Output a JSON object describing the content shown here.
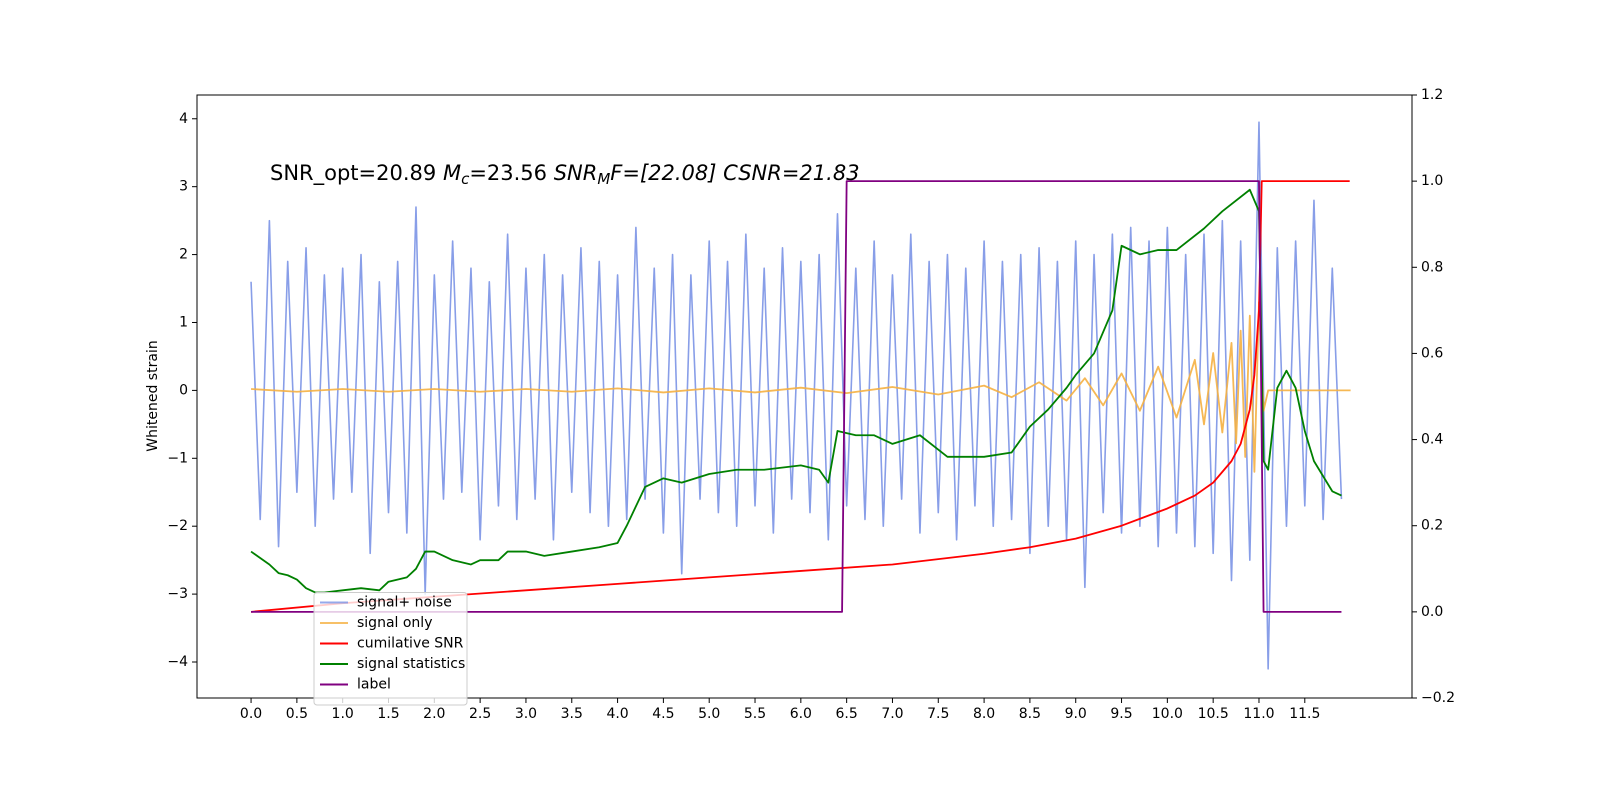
{
  "chart_data": {
    "type": "line",
    "annotation": [
      "SNR_opt=20.89 ",
      "M",
      "c",
      "=23.56  ",
      "SNR",
      "M",
      "F=[22.08] CSNR=21.83"
    ],
    "ylabel": "Whitened strain",
    "legend": "lower left",
    "xlim": [
      -0.59,
      12.67
    ],
    "ylim": [
      -4.53,
      4.35
    ],
    "y2lim": [
      -0.2,
      1.2
    ],
    "xticks": [
      {
        "value": 0,
        "label": "0.0"
      },
      0.5,
      {
        "value": 1,
        "label": "1.0"
      },
      1.5,
      {
        "value": 2,
        "label": "2.0"
      },
      2.5,
      {
        "value": 3,
        "label": "3.0"
      },
      3.5,
      {
        "value": 4,
        "label": "4.0"
      },
      4.5,
      {
        "value": 5,
        "label": "5.0"
      },
      5.5,
      {
        "value": 6,
        "label": "6.0"
      },
      6.5,
      {
        "value": 7,
        "label": "7.0"
      },
      7.5,
      {
        "value": 8,
        "label": "8.0"
      },
      8.5,
      {
        "value": 9,
        "label": "9.0"
      },
      9.5,
      {
        "value": 10,
        "label": "10.0"
      },
      10.5,
      {
        "value": 11,
        "label": "11.0"
      },
      11.5
    ],
    "yticks": [
      {
        "value": -4,
        "label": "−4"
      },
      {
        "value": -3,
        "label": "−3"
      },
      {
        "value": -2,
        "label": "−2"
      },
      {
        "value": -1,
        "label": "−1"
      },
      0,
      1,
      2,
      3,
      4
    ],
    "y2ticks": [
      {
        "value": -0.2,
        "label": "−0.2"
      },
      {
        "value": 0,
        "label": "0.0"
      },
      0.2,
      0.4,
      0.6,
      0.8,
      {
        "value": 1,
        "label": "1.0"
      },
      1.2
    ],
    "series": [
      {
        "name": "signal+ noise",
        "color": "#7b93e6",
        "x": [
          0,
          0.1,
          0.2,
          0.3,
          0.4,
          0.5,
          0.6,
          0.7,
          0.8,
          0.9,
          1,
          1.1,
          1.2,
          1.3,
          1.4,
          1.5,
          1.6,
          1.7,
          1.8,
          1.9,
          2,
          2.1,
          2.2,
          2.3,
          2.4,
          2.5,
          2.6,
          2.7,
          2.8,
          2.9,
          3,
          3.1,
          3.2,
          3.3,
          3.4,
          3.5,
          3.6,
          3.7,
          3.8,
          3.9,
          4,
          4.1,
          4.2,
          4.3,
          4.4,
          4.5,
          4.6,
          4.7,
          4.8,
          4.9,
          5,
          5.1,
          5.2,
          5.3,
          5.4,
          5.5,
          5.6,
          5.7,
          5.8,
          5.9,
          6,
          6.1,
          6.2,
          6.3,
          6.4,
          6.5,
          6.6,
          6.7,
          6.8,
          6.9,
          7,
          7.1,
          7.2,
          7.3,
          7.4,
          7.5,
          7.6,
          7.7,
          7.8,
          7.9,
          8,
          8.1,
          8.2,
          8.3,
          8.4,
          8.5,
          8.6,
          8.7,
          8.8,
          8.9,
          9,
          9.1,
          9.2,
          9.3,
          9.4,
          9.5,
          9.6,
          9.7,
          9.8,
          9.9,
          10,
          10.1,
          10.2,
          10.3,
          10.4,
          10.5,
          10.6,
          10.7,
          10.8,
          10.9,
          11,
          11.1,
          11.2,
          11.3,
          11.4,
          11.5,
          11.6,
          11.7,
          11.8,
          11.9
        ],
        "values": [
          1.6,
          -1.9,
          2.5,
          -2.3,
          1.9,
          -1.5,
          2.1,
          -2.0,
          1.7,
          -1.6,
          1.8,
          -1.5,
          2.0,
          -2.4,
          1.6,
          -1.8,
          1.9,
          -2.1,
          2.7,
          -3.0,
          1.7,
          -1.6,
          2.2,
          -1.5,
          1.8,
          -2.2,
          1.6,
          -1.7,
          2.3,
          -1.9,
          1.8,
          -1.6,
          2.0,
          -2.2,
          1.7,
          -1.5,
          2.1,
          -1.8,
          1.9,
          -2.0,
          1.7,
          -1.9,
          2.4,
          -1.6,
          1.8,
          -2.1,
          2.0,
          -2.7,
          1.7,
          -1.6,
          2.2,
          -1.8,
          1.9,
          -2.0,
          2.3,
          -1.7,
          1.8,
          -2.1,
          2.1,
          -1.6,
          1.9,
          -1.8,
          2.0,
          -2.2,
          2.6,
          -1.7,
          1.8,
          -1.9,
          2.2,
          -2.0,
          1.7,
          -1.6,
          2.3,
          -2.1,
          1.9,
          -1.8,
          2.0,
          -2.2,
          1.8,
          -1.7,
          2.2,
          -2.0,
          1.9,
          -1.9,
          2.0,
          -2.4,
          2.1,
          -2.0,
          1.9,
          -2.2,
          2.2,
          -2.9,
          2.0,
          -1.8,
          2.3,
          -2.1,
          2.4,
          -2.0,
          2.2,
          -2.3,
          2.4,
          -2.1,
          2.0,
          -2.3,
          2.3,
          -2.4,
          2.5,
          -2.8,
          2.2,
          -2.5,
          3.95,
          -4.1,
          2.1,
          -2.0,
          2.2,
          -1.7,
          2.8,
          -1.9,
          1.8,
          -1.6
        ]
      },
      {
        "name": "signal only",
        "color": "#f5b041",
        "x": [
          0,
          0.5,
          1,
          1.5,
          2,
          2.5,
          3,
          3.5,
          4,
          4.5,
          5,
          5.5,
          6,
          6.5,
          7,
          7.5,
          8,
          8.3,
          8.6,
          8.9,
          9.1,
          9.3,
          9.5,
          9.7,
          9.9,
          10.1,
          10.3,
          10.4,
          10.5,
          10.6,
          10.7,
          10.75,
          10.8,
          10.85,
          10.9,
          10.95,
          11,
          11.05,
          11.1,
          11.5,
          12
        ],
        "values": [
          0.02,
          -0.02,
          0.02,
          -0.02,
          0.02,
          -0.02,
          0.02,
          -0.02,
          0.03,
          -0.03,
          0.03,
          -0.03,
          0.04,
          -0.04,
          0.05,
          -0.06,
          0.07,
          -0.1,
          0.12,
          -0.15,
          0.18,
          -0.22,
          0.25,
          -0.3,
          0.35,
          -0.4,
          0.45,
          -0.5,
          0.55,
          -0.62,
          0.7,
          -0.78,
          0.88,
          -0.98,
          1.1,
          -1.2,
          1.3,
          -0.3,
          0,
          0,
          0
        ]
      },
      {
        "name": "cumilative SNR",
        "color": "#ff0000",
        "axis": "y2",
        "x": [
          0,
          1,
          2,
          3,
          4,
          5,
          6,
          7,
          8,
          8.5,
          9,
          9.5,
          10,
          10.3,
          10.5,
          10.7,
          10.8,
          10.9,
          10.95,
          11,
          11.03,
          11.99
        ],
        "values": [
          0,
          0.02,
          0.035,
          0.05,
          0.065,
          0.08,
          0.095,
          0.11,
          0.135,
          0.15,
          0.17,
          0.2,
          0.24,
          0.27,
          0.3,
          0.35,
          0.39,
          0.47,
          0.55,
          0.7,
          1.0,
          1.0
        ]
      },
      {
        "name": "signal statistics",
        "color": "#008000",
        "axis": "y2",
        "x": [
          0,
          0.2,
          0.3,
          0.4,
          0.5,
          0.6,
          0.7,
          0.8,
          1,
          1.2,
          1.4,
          1.5,
          1.7,
          1.8,
          1.9,
          2,
          2.2,
          2.4,
          2.5,
          2.7,
          2.8,
          3,
          3.2,
          3.5,
          3.8,
          4,
          4.1,
          4.3,
          4.5,
          4.7,
          5,
          5.3,
          5.6,
          6,
          6.2,
          6.3,
          6.4,
          6.6,
          6.8,
          7,
          7.3,
          7.6,
          8,
          8.3,
          8.5,
          8.7,
          8.9,
          9,
          9.2,
          9.4,
          9.5,
          9.7,
          9.9,
          10.1,
          10.4,
          10.6,
          10.9,
          11,
          11.05,
          11.1,
          11.2,
          11.3,
          11.4,
          11.5,
          11.6,
          11.8,
          11.9
        ],
        "values": [
          0.14,
          0.11,
          0.09,
          0.085,
          0.075,
          0.055,
          0.045,
          0.045,
          0.05,
          0.055,
          0.05,
          0.07,
          0.08,
          0.1,
          0.14,
          0.14,
          0.12,
          0.11,
          0.12,
          0.12,
          0.14,
          0.14,
          0.13,
          0.14,
          0.15,
          0.16,
          0.2,
          0.29,
          0.31,
          0.3,
          0.32,
          0.33,
          0.33,
          0.34,
          0.33,
          0.3,
          0.42,
          0.41,
          0.41,
          0.39,
          0.41,
          0.36,
          0.36,
          0.37,
          0.43,
          0.47,
          0.52,
          0.55,
          0.6,
          0.7,
          0.85,
          0.83,
          0.84,
          0.84,
          0.89,
          0.93,
          0.98,
          0.93,
          0.35,
          0.33,
          0.52,
          0.56,
          0.52,
          0.42,
          0.35,
          0.28,
          0.27
        ]
      },
      {
        "name": "label",
        "color": "#800080",
        "axis": "y2",
        "x": [
          0,
          6.45,
          6.5,
          11.0,
          11.05,
          11.9
        ],
        "values": [
          0,
          0,
          1,
          1,
          0,
          0
        ]
      }
    ]
  }
}
